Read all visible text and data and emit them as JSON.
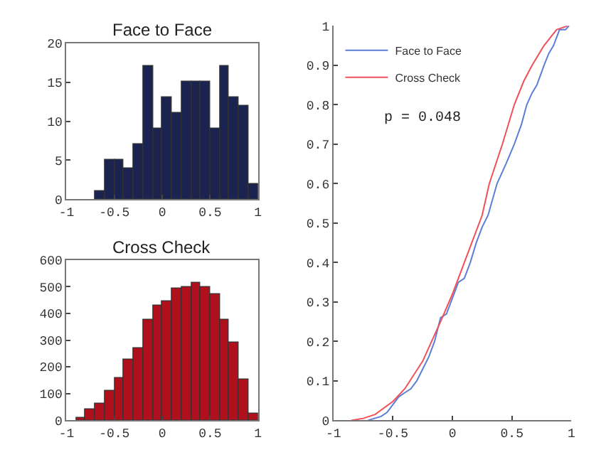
{
  "chart_data": [
    {
      "type": "histogram",
      "title": "Face to Face",
      "bins": [
        -0.7,
        -0.6,
        -0.5,
        -0.4,
        -0.3,
        -0.2,
        -0.1,
        0,
        0.1,
        0.2,
        0.3,
        0.4,
        0.5,
        0.6,
        0.7,
        0.8,
        0.9,
        1.0
      ],
      "values": [
        1,
        5,
        5,
        4,
        7,
        17,
        9,
        13,
        11,
        15,
        15,
        15,
        9,
        17,
        13,
        12,
        2
      ],
      "color": "#1b2350",
      "xlim": [
        -1,
        1
      ],
      "xticks": [
        -1,
        -0.5,
        0,
        0.5,
        1
      ],
      "ylim": [
        0,
        20
      ],
      "yticks": [
        0,
        5,
        10,
        15,
        20
      ]
    },
    {
      "type": "histogram",
      "title": "Cross Check",
      "bins": [
        -0.9,
        -0.8,
        -0.7,
        -0.6,
        -0.5,
        -0.4,
        -0.3,
        -0.2,
        -0.1,
        0,
        0.1,
        0.2,
        0.3,
        0.4,
        0.5,
        0.6,
        0.7,
        0.8,
        0.9,
        1.0
      ],
      "values": [
        10,
        40,
        65,
        110,
        160,
        228,
        270,
        375,
        430,
        447,
        493,
        497,
        515,
        500,
        475,
        378,
        290,
        153,
        25
      ],
      "color": "#b00f1c",
      "xlim": [
        -1,
        1
      ],
      "xticks": [
        -1,
        -0.5,
        0,
        0.5,
        1
      ],
      "ylim": [
        0,
        600
      ],
      "yticks": [
        0,
        100,
        200,
        300,
        400,
        500,
        600
      ]
    },
    {
      "type": "line",
      "legend": "top left",
      "annotations": [
        "p = 0.048"
      ],
      "xlim": [
        -1,
        1
      ],
      "xticks": [
        -1,
        -0.5,
        0,
        0.5,
        1
      ],
      "ylim": [
        0,
        1
      ],
      "yticks": [
        0,
        0.1,
        0.2,
        0.3,
        0.4,
        0.5,
        0.6,
        0.7,
        0.8,
        0.9,
        1
      ],
      "series": [
        {
          "name": "Face to Face",
          "color": "#5b7fd6",
          "x": [
            -0.71,
            -0.6,
            -0.55,
            -0.5,
            -0.45,
            -0.4,
            -0.35,
            -0.3,
            -0.25,
            -0.2,
            -0.15,
            -0.1,
            -0.05,
            0,
            0.05,
            0.1,
            0.15,
            0.2,
            0.25,
            0.3,
            0.375,
            0.45,
            0.52,
            0.58,
            0.625,
            0.67,
            0.71,
            0.77,
            0.81,
            0.85,
            0.9,
            0.95,
            0.98
          ],
          "values": [
            0,
            0.01,
            0.02,
            0.04,
            0.06,
            0.07,
            0.08,
            0.1,
            0.13,
            0.16,
            0.2,
            0.26,
            0.27,
            0.31,
            0.35,
            0.36,
            0.4,
            0.45,
            0.49,
            0.52,
            0.6,
            0.65,
            0.7,
            0.75,
            0.8,
            0.83,
            0.85,
            0.9,
            0.93,
            0.95,
            0.99,
            0.99,
            1
          ]
        },
        {
          "name": "Cross Check",
          "color": "#f0505a",
          "x": [
            -0.85,
            -0.75,
            -0.65,
            -0.5,
            -0.4,
            -0.25,
            -0.1,
            0,
            0.1,
            0.25,
            0.31,
            0.42,
            0.52,
            0.6,
            0.67,
            0.77,
            0.875,
            0.97
          ],
          "values": [
            0,
            0.005,
            0.015,
            0.048,
            0.08,
            0.15,
            0.25,
            0.32,
            0.4,
            0.52,
            0.6,
            0.7,
            0.8,
            0.86,
            0.9,
            0.95,
            0.99,
            1
          ]
        }
      ]
    }
  ]
}
